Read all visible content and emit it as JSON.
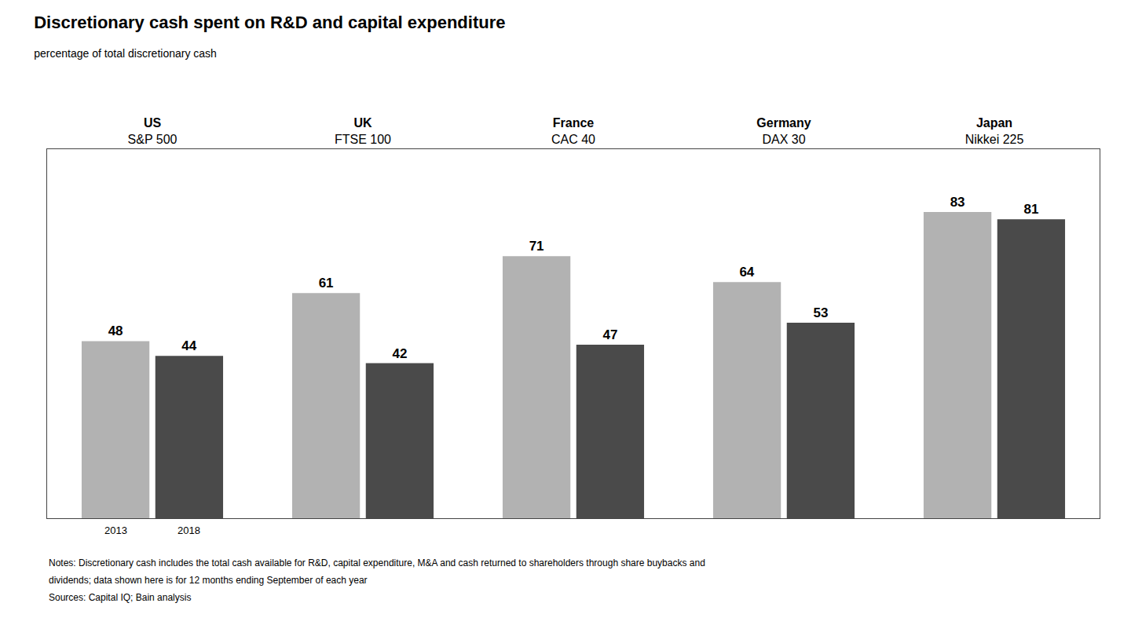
{
  "chart_data": {
    "type": "bar",
    "title": "Discretionary cash spent on R&D and capital expenditure",
    "subtitle": "percentage of total discretionary cash",
    "categories": [
      "US",
      "UK",
      "France",
      "Germany",
      "Japan"
    ],
    "category_subtitles": [
      "S&P 500",
      "FTSE 100",
      "CAC 40",
      "DAX 30",
      "Nikkei 225"
    ],
    "series": [
      {
        "name": "2013",
        "color": "#b2b2b2",
        "values": [
          48,
          61,
          71,
          64,
          83
        ]
      },
      {
        "name": "2018",
        "color": "#4a4a4a",
        "values": [
          44,
          42,
          47,
          53,
          81
        ]
      }
    ],
    "ylim": [
      0,
      100
    ],
    "grid": false,
    "tick_labels": "x",
    "data_labels": true,
    "notes": [
      "Notes: Discretionary cash includes the total cash available for R&D, capital expenditure, M&A and cash returned to shareholders through share buybacks and",
      "dividends; data shown here is for 12 months ending September of each year",
      "Sources: Capital IQ; Bain analysis"
    ]
  }
}
